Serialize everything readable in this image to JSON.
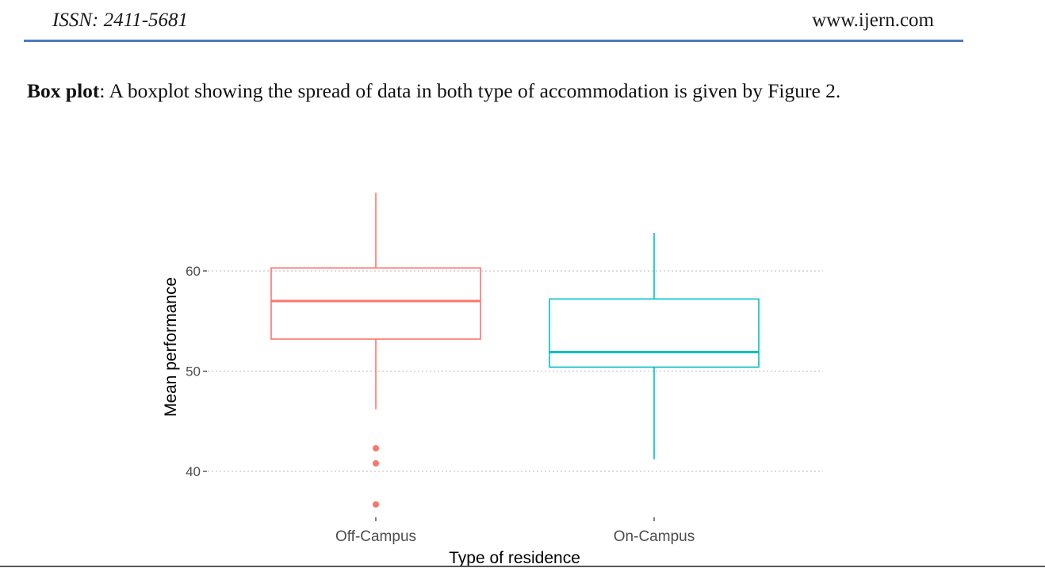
{
  "header": {
    "issn": "ISSN: 2411-5681",
    "website": "www.ijern.com"
  },
  "paragraph": {
    "bold_lead": "Box plot",
    "text": ": A boxplot showing the spread of data in both type of accommodation is given by Figure 2."
  },
  "chart_data": {
    "type": "boxplot",
    "xlabel": "Type of residence",
    "ylabel": "Mean performance",
    "categories": [
      "Off-Campus",
      "On-Campus"
    ],
    "yticks": [
      40,
      50,
      60
    ],
    "ylim": [
      36,
      68
    ],
    "grid": "horizontal dotted",
    "legend": "none",
    "boxes": [
      {
        "category": "Off-Campus",
        "color": "#f8766d",
        "min": 46.2,
        "q1": 53.2,
        "median": 57.0,
        "q3": 60.3,
        "max": 67.8,
        "outliers": [
          42.3,
          40.8,
          36.7
        ]
      },
      {
        "category": "On-Campus",
        "color": "#00bfc4",
        "min": 41.2,
        "q1": 50.4,
        "median": 51.9,
        "q3": 57.2,
        "max": 63.8,
        "outliers": []
      }
    ]
  }
}
